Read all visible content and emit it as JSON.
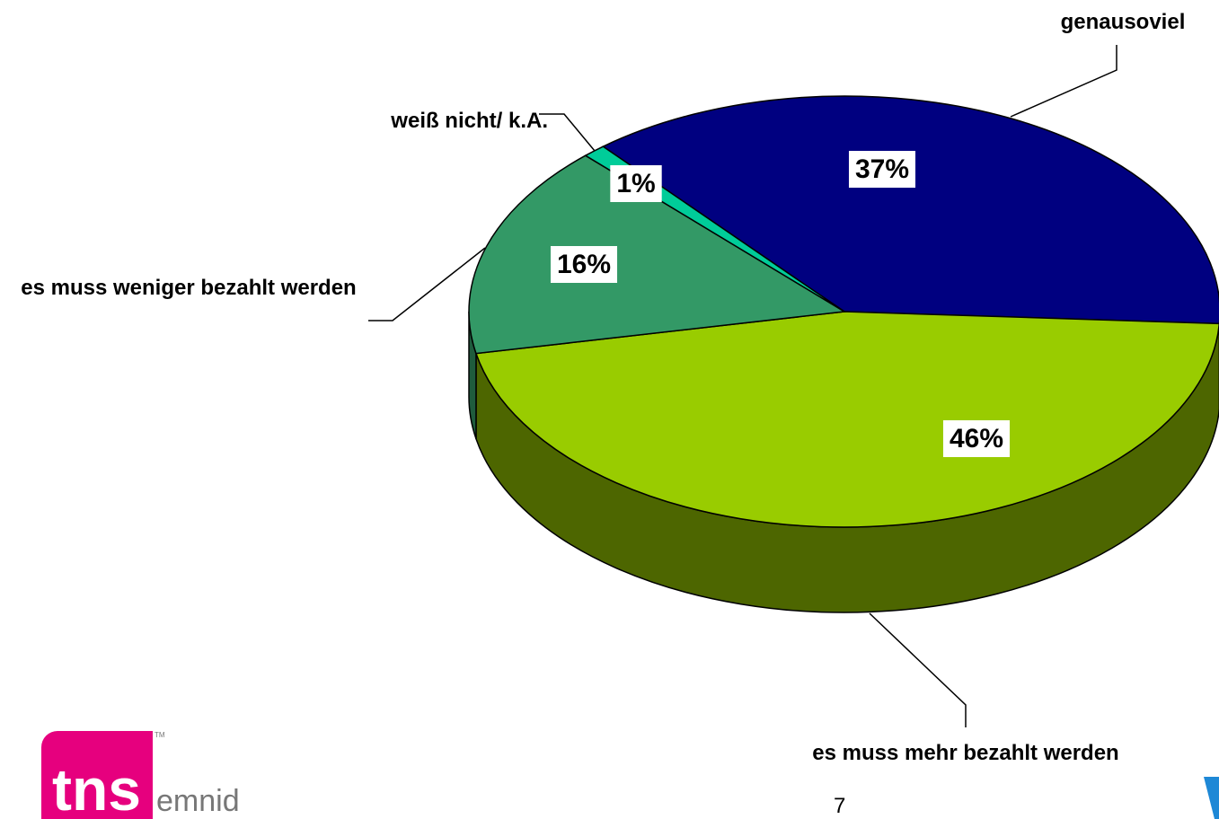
{
  "chart_data": {
    "type": "pie3d",
    "categories": [
      "genausoviel",
      "es muss mehr bezahlt werden",
      "es muss weniger bezahlt werden",
      "weiß nicht/ k.A."
    ],
    "values": [
      37,
      46,
      16,
      1
    ],
    "value_labels": [
      "37%",
      "46%",
      "16%",
      "1%"
    ],
    "colors": [
      "#000080",
      "#99cc00",
      "#339966",
      "#00cc99"
    ],
    "side_colors": [
      "#000050",
      "#4d6600",
      "#1f5c3d",
      "#008066"
    ]
  },
  "footer": {
    "logo": "tns",
    "logo_suffix": "emnid",
    "trademark": "TM",
    "page_number": "7"
  }
}
